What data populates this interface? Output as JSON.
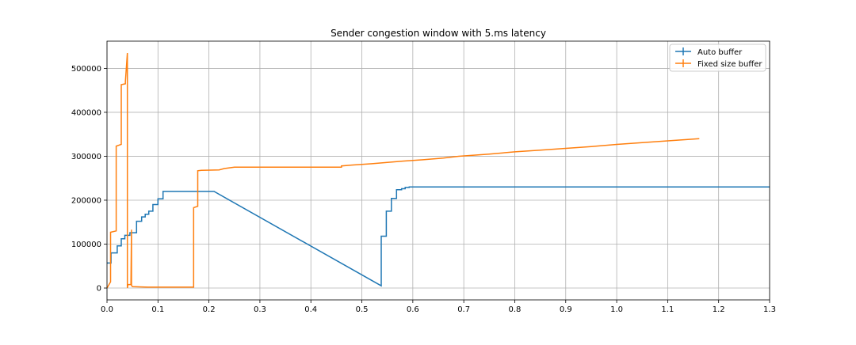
{
  "chart_data": {
    "type": "line",
    "title": "Sender congestion window with 5.ms latency",
    "xlabel": "",
    "ylabel": "",
    "xlim": [
      0.0,
      1.3
    ],
    "ylim": [
      -27000,
      562000
    ],
    "x_ticks": [
      0.0,
      0.1,
      0.2,
      0.3,
      0.4,
      0.5,
      0.6,
      0.7,
      0.8,
      0.9,
      1.0,
      1.1,
      1.2,
      1.3
    ],
    "x_tick_labels": [
      "0.0",
      "0.1",
      "0.2",
      "0.3",
      "0.4",
      "0.5",
      "0.6",
      "0.7",
      "0.8",
      "0.9",
      "1.0",
      "1.1",
      "1.2",
      "1.3"
    ],
    "y_ticks": [
      0,
      100000,
      200000,
      300000,
      400000,
      500000
    ],
    "y_tick_labels": [
      "0",
      "100000",
      "200000",
      "300000",
      "400000",
      "500000"
    ],
    "grid": true,
    "legend_position": "upper right",
    "series": [
      {
        "name": "Auto buffer",
        "color": "#1f77b4",
        "points": [
          [
            0.0,
            57000
          ],
          [
            0.008,
            57000
          ],
          [
            0.008,
            80000
          ],
          [
            0.02,
            80000
          ],
          [
            0.02,
            96000
          ],
          [
            0.028,
            96000
          ],
          [
            0.028,
            112000
          ],
          [
            0.035,
            112000
          ],
          [
            0.035,
            120000
          ],
          [
            0.045,
            120000
          ],
          [
            0.045,
            126000
          ],
          [
            0.058,
            126000
          ],
          [
            0.058,
            152000
          ],
          [
            0.068,
            152000
          ],
          [
            0.068,
            162000
          ],
          [
            0.075,
            162000
          ],
          [
            0.075,
            168000
          ],
          [
            0.082,
            168000
          ],
          [
            0.082,
            175000
          ],
          [
            0.09,
            175000
          ],
          [
            0.09,
            190000
          ],
          [
            0.1,
            190000
          ],
          [
            0.1,
            203000
          ],
          [
            0.11,
            203000
          ],
          [
            0.11,
            220000
          ],
          [
            0.21,
            220000
          ],
          [
            0.538,
            5000
          ],
          [
            0.538,
            118000
          ],
          [
            0.548,
            118000
          ],
          [
            0.548,
            175000
          ],
          [
            0.558,
            175000
          ],
          [
            0.558,
            204000
          ],
          [
            0.568,
            204000
          ],
          [
            0.568,
            224000
          ],
          [
            0.578,
            224000
          ],
          [
            0.578,
            226000
          ],
          [
            0.585,
            226000
          ],
          [
            0.585,
            229000
          ],
          [
            0.593,
            229000
          ],
          [
            0.593,
            230000
          ],
          [
            1.3,
            230000
          ]
        ]
      },
      {
        "name": "Fixed size buffer",
        "color": "#ff7f0e",
        "points": [
          [
            0.0,
            0
          ],
          [
            0.007,
            14000
          ],
          [
            0.007,
            127000
          ],
          [
            0.018,
            130000
          ],
          [
            0.018,
            323000
          ],
          [
            0.028,
            327000
          ],
          [
            0.028,
            463000
          ],
          [
            0.036,
            465000
          ],
          [
            0.036,
            470000
          ],
          [
            0.04,
            535000
          ],
          [
            0.04,
            0
          ],
          [
            0.041,
            8000
          ],
          [
            0.047,
            8000
          ],
          [
            0.048,
            133000
          ],
          [
            0.048,
            6000
          ],
          [
            0.05,
            3000
          ],
          [
            0.08,
            2000
          ],
          [
            0.17,
            2000
          ],
          [
            0.17,
            183000
          ],
          [
            0.178,
            186000
          ],
          [
            0.178,
            267000
          ],
          [
            0.185,
            268000
          ],
          [
            0.22,
            269000
          ],
          [
            0.23,
            272000
          ],
          [
            0.25,
            275000
          ],
          [
            0.46,
            275000
          ],
          [
            0.46,
            278000
          ],
          [
            0.48,
            280000
          ],
          [
            0.52,
            283000
          ],
          [
            0.55,
            286000
          ],
          [
            0.58,
            289000
          ],
          [
            0.62,
            292000
          ],
          [
            0.66,
            296000
          ],
          [
            0.69,
            300000
          ],
          [
            0.75,
            305000
          ],
          [
            0.8,
            310000
          ],
          [
            0.85,
            314000
          ],
          [
            0.9,
            318000
          ],
          [
            0.95,
            322000
          ],
          [
            1.0,
            327000
          ],
          [
            1.05,
            331000
          ],
          [
            1.1,
            335000
          ],
          [
            1.162,
            340000
          ]
        ]
      }
    ]
  }
}
